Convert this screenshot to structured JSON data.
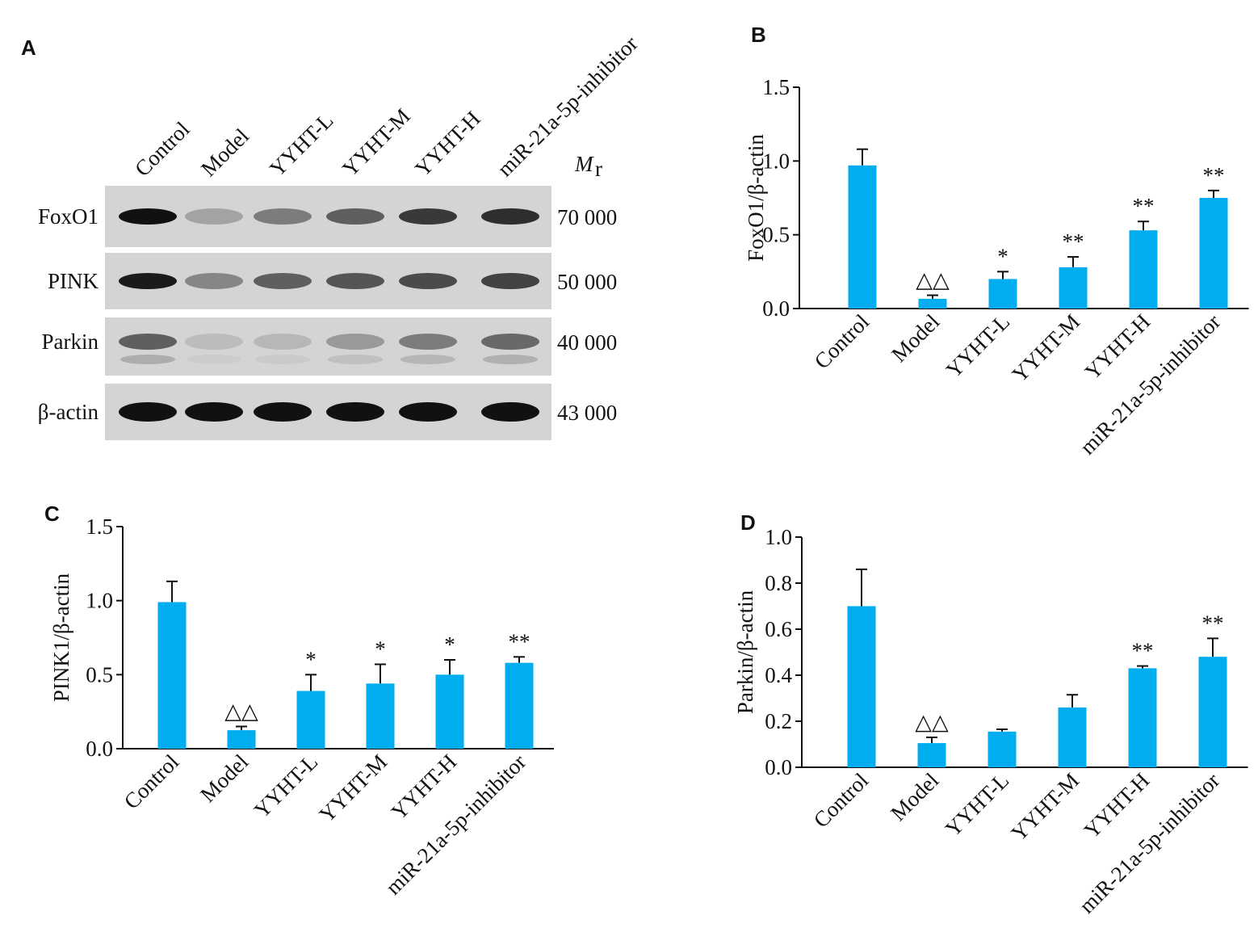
{
  "blot": {
    "panel_label": "A",
    "lanes": [
      "Control",
      "Model",
      "YYHT-L",
      "YYHT-M",
      "YYHT-H",
      "miR-21a-5p-inhibitor"
    ],
    "rows": [
      "FoxO1",
      "PINK",
      "Parkin",
      "β-actin"
    ],
    "mr_labels": [
      "70 000",
      "50 000",
      "40 000",
      "43 000"
    ],
    "mr_header": {
      "symbol": "M",
      "subscript": "r"
    }
  },
  "chart_data": [
    {
      "type": "bar",
      "panel_label": "B",
      "y_label": "FoxO1/β-actin",
      "categories": [
        "Control",
        "Model",
        "YYHT-L",
        "YYHT-M",
        "YYHT-H",
        "miR-21a-5p-inhibitor"
      ],
      "values": [
        0.97,
        0.066,
        0.2,
        0.28,
        0.53,
        0.75
      ],
      "errors": [
        0.11,
        0.024,
        0.05,
        0.07,
        0.06,
        0.05
      ],
      "annotations": [
        null,
        "△△",
        "*",
        "**",
        "**",
        "**"
      ],
      "color": "#00aeef",
      "ylim": [
        0,
        1.5
      ],
      "yticks": [
        {
          "value": 0,
          "label": "0.0"
        },
        0.5,
        {
          "value": 1,
          "label": "1.0"
        },
        1.5
      ]
    },
    {
      "type": "bar",
      "panel_label": "C",
      "y_label": "PINK1/β-actin",
      "categories": [
        "Control",
        "Model",
        "YYHT-L",
        "YYHT-M",
        "YYHT-H",
        "miR-21a-5p-inhibitor"
      ],
      "values": [
        0.99,
        0.125,
        0.39,
        0.44,
        0.5,
        0.58
      ],
      "errors": [
        0.14,
        0.025,
        0.11,
        0.13,
        0.1,
        0.04
      ],
      "annotations": [
        null,
        "△△",
        "*",
        "*",
        "*",
        "**"
      ],
      "color": "#00aeef",
      "ylim": [
        0,
        1.5
      ],
      "yticks": [
        {
          "value": 0,
          "label": "0.0"
        },
        0.5,
        {
          "value": 1,
          "label": "1.0"
        },
        1.5
      ]
    },
    {
      "type": "bar",
      "panel_label": "D",
      "y_label": "Parkin/β-actin",
      "categories": [
        "Control",
        "Model",
        "YYHT-L",
        "YYHT-M",
        "YYHT-H",
        "miR-21a-5p-inhibitor"
      ],
      "values": [
        0.7,
        0.105,
        0.155,
        0.26,
        0.43,
        0.48
      ],
      "errors": [
        0.16,
        0.025,
        0.01,
        0.055,
        0.01,
        0.08
      ],
      "annotations": [
        null,
        "△△",
        null,
        null,
        "**",
        "**"
      ],
      "color": "#00aeef",
      "ylim": [
        0,
        1
      ],
      "yticks": [
        {
          "value": 0,
          "label": "0.0"
        },
        0.2,
        0.4,
        0.6,
        0.8,
        {
          "value": 1,
          "label": "1.0"
        }
      ]
    }
  ]
}
